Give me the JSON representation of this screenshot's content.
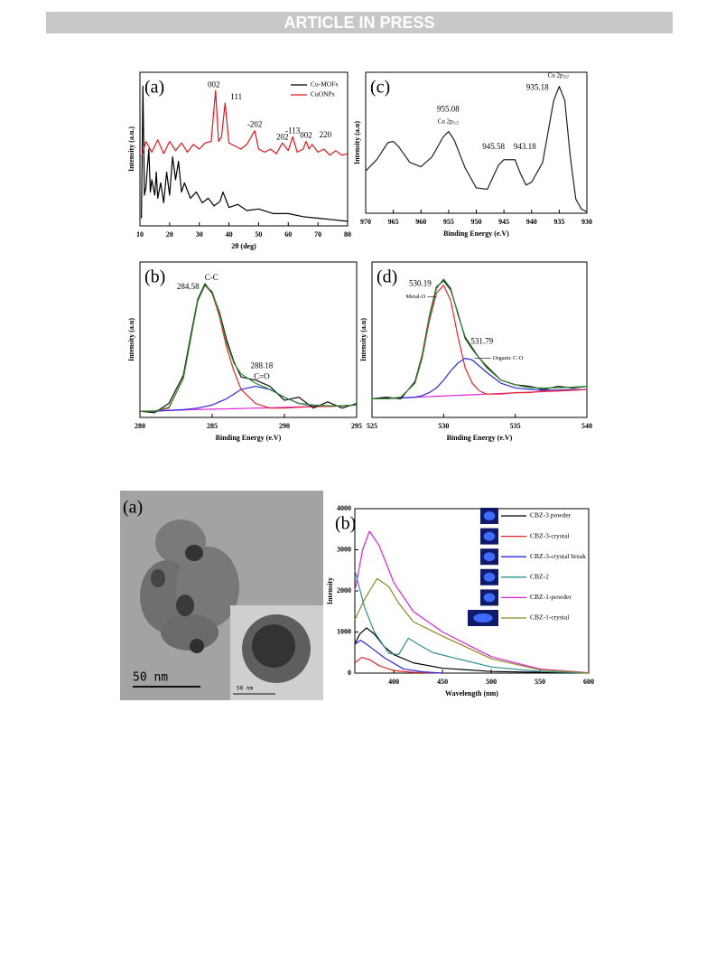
{
  "header": {
    "banner": "ARTICLE IN PRESS"
  },
  "image": {
    "panel_label": "(a)",
    "scale_bar": "50 nm",
    "inset_scale_bar": "50 nm"
  },
  "chart_data": [
    {
      "type": "line",
      "panel_label": "(a)",
      "xlabel": "2θ (deg)",
      "ylabel": "Intensity (a.u.)",
      "xlim": [
        10,
        80
      ],
      "xticks": [
        10,
        20,
        30,
        40,
        50,
        60,
        70,
        80
      ],
      "ylim": [
        0,
        100
      ],
      "legend": "upper right",
      "series": [
        {
          "name": "Cu-MOFs",
          "color": "#000000",
          "x": [
            10.5,
            11,
            11.5,
            12,
            13,
            13.5,
            14,
            15,
            15.5,
            16,
            17,
            18,
            19,
            20,
            21,
            22,
            23,
            24,
            25,
            27,
            29,
            31,
            33,
            35,
            37,
            38,
            40,
            43,
            46,
            50,
            55,
            60,
            65,
            70,
            75,
            80
          ],
          "values": [
            5,
            91,
            20,
            25,
            50,
            22,
            30,
            20,
            35,
            18,
            28,
            15,
            35,
            20,
            45,
            30,
            42,
            22,
            28,
            18,
            22,
            15,
            18,
            13,
            16,
            22,
            12,
            14,
            10,
            11,
            8,
            8,
            6,
            5,
            4,
            3
          ]
        },
        {
          "name": "CuONPs",
          "color": "#e8141c",
          "x": [
            10.5,
            12,
            14,
            16,
            18,
            20,
            22,
            24,
            26,
            28,
            30,
            32,
            34,
            35.5,
            36.5,
            37.5,
            38.7,
            40,
            42,
            44,
            46,
            48.7,
            50,
            52,
            54,
            56,
            58,
            60,
            61.5,
            63,
            65,
            66,
            67,
            68,
            70,
            72,
            74,
            76,
            78,
            80
          ],
          "values": [
            45,
            55,
            48,
            56,
            47,
            55,
            49,
            54,
            48,
            53,
            50,
            54,
            55,
            88,
            55,
            58,
            80,
            54,
            52,
            50,
            53,
            62,
            50,
            48,
            50,
            47,
            54,
            49,
            58,
            48,
            50,
            55,
            50,
            53,
            48,
            50,
            46,
            49,
            46,
            47
          ]
        }
      ],
      "annotations": [
        {
          "text": "002",
          "x": 35.5,
          "y": 88
        },
        {
          "text": "111",
          "x": 38.7,
          "y": 80
        },
        {
          "text": "-202",
          "x": 48.7,
          "y": 62
        },
        {
          "text": "202",
          "x": 58,
          "y": 54
        },
        {
          "text": "-113",
          "x": 61.5,
          "y": 58
        },
        {
          "text": "002",
          "x": 66,
          "y": 55
        },
        {
          "text": "220",
          "x": 68,
          "y": 53
        }
      ]
    },
    {
      "type": "line",
      "panel_label": "(c)",
      "xlabel": "Binding Energy (e.V)",
      "ylabel": "Intensity (a.u)",
      "xlim": [
        970,
        930
      ],
      "xticks": [
        970,
        965,
        960,
        955,
        950,
        945,
        940,
        935,
        930
      ],
      "ylim": [
        0,
        100
      ],
      "series": [
        {
          "color": "#222222",
          "x": [
            970,
            968,
            966,
            965,
            964,
            962,
            960,
            958,
            956,
            955,
            954,
            952,
            950,
            948,
            946,
            945,
            944,
            943,
            942,
            941,
            940,
            938,
            936,
            935,
            934,
            933,
            932,
            931,
            930
          ],
          "values": [
            30,
            38,
            50,
            51,
            47,
            36,
            33,
            40,
            54,
            58,
            52,
            32,
            18,
            17,
            34,
            38,
            38,
            38,
            28,
            20,
            22,
            36,
            80,
            90,
            80,
            40,
            10,
            3,
            1
          ]
        }
      ],
      "annotations": [
        {
          "text": "955.08",
          "x": 955.08,
          "y": 58
        },
        {
          "text": "Cu 2p",
          "sub": "1/2",
          "x": 955.08,
          "y": 58
        },
        {
          "text": "945.58",
          "x": 945.58,
          "y": 38
        },
        {
          "text": "943.18",
          "x": 943.18,
          "y": 38
        },
        {
          "text": "935.18",
          "x": 935.18,
          "y": 90
        },
        {
          "text": "Cu 2p",
          "sub": "3/2",
          "x": 935.18,
          "y": 90
        }
      ]
    },
    {
      "type": "line",
      "panel_label": "(b)",
      "xlabel": "Binding Energy (e.V)",
      "ylabel": "Intensity (a.u)",
      "xlim": [
        280,
        295
      ],
      "xticks": [
        280,
        285,
        290,
        295
      ],
      "ylim": [
        0,
        100
      ],
      "x": [
        280,
        281,
        282,
        283,
        283.5,
        284,
        284.5,
        285,
        285.5,
        286,
        286.5,
        287,
        288,
        289,
        290,
        291,
        292,
        293,
        294,
        295
      ],
      "series": [
        {
          "color": "#e020e0",
          "values": [
            4,
            4.2,
            4.5,
            4.8,
            5,
            5.1,
            5.2,
            5.3,
            5.4,
            5.5,
            5.6,
            5.7,
            6,
            6.2,
            6.5,
            6.8,
            7,
            7.3,
            7.6,
            8
          ]
        },
        {
          "color": "#2a2ae0",
          "values": [
            4,
            4,
            4.5,
            5,
            5.5,
            6,
            7,
            8,
            10,
            12,
            15,
            18,
            20,
            18,
            13,
            9,
            7.5,
            7,
            7.5,
            8
          ]
        },
        {
          "color": "#e8262a",
          "values": [
            4,
            4,
            6,
            25,
            50,
            75,
            85,
            80,
            65,
            45,
            30,
            18,
            9,
            6,
            6,
            6.5,
            7,
            7,
            7.5,
            8
          ]
        },
        {
          "color": "#111111",
          "values": [
            4,
            3,
            9,
            27,
            52,
            76,
            86,
            80,
            68,
            50,
            36,
            26,
            24,
            20,
            11,
            13,
            6,
            10,
            6,
            9
          ]
        },
        {
          "color": "#2e8b2e",
          "values": [
            4,
            4,
            6.5,
            25,
            50,
            75,
            85,
            81,
            67,
            48,
            35,
            28,
            22,
            18,
            13,
            9,
            8,
            7.5,
            7.5,
            8
          ]
        }
      ],
      "annotations": [
        {
          "text": "284.58",
          "x": 284.58,
          "y": 85
        },
        {
          "text": "C-C",
          "x": 284.58,
          "y": 85
        },
        {
          "text": "288.18",
          "x": 288.18,
          "y": 20
        },
        {
          "text": "C=O",
          "x": 288.18,
          "y": 20
        }
      ]
    },
    {
      "type": "line",
      "panel_label": "(d)",
      "xlabel": "Binding Energy (e.V)",
      "ylabel": "Intensity (a.u)",
      "xlim": [
        525,
        540
      ],
      "xticks": [
        525,
        530,
        535,
        540
      ],
      "ylim": [
        0,
        100
      ],
      "x": [
        525,
        526,
        527,
        528,
        528.5,
        529,
        529.5,
        530,
        530.5,
        531,
        531.5,
        532,
        532.5,
        533,
        534,
        535,
        536,
        537,
        538,
        539,
        540
      ],
      "series": [
        {
          "color": "#e020e0",
          "values": [
            12,
            12.3,
            12.6,
            13,
            13.2,
            13.4,
            13.6,
            13.8,
            14,
            14.2,
            14.4,
            14.6,
            14.8,
            15,
            15.4,
            15.8,
            16.2,
            16.6,
            17,
            17.5,
            18
          ]
        },
        {
          "color": "#2a2ae0",
          "values": [
            12,
            12,
            12.5,
            13,
            14,
            16,
            19,
            24,
            30,
            35,
            38,
            37,
            33,
            29,
            22,
            19,
            18,
            17.5,
            17.5,
            18,
            18
          ]
        },
        {
          "color": "#e8262a",
          "values": [
            12,
            12,
            13,
            22,
            38,
            62,
            80,
            85,
            75,
            52,
            32,
            22,
            17,
            15,
            15,
            16,
            16,
            17,
            17,
            17.5,
            18
          ]
        },
        {
          "color": "#111111",
          "values": [
            12,
            13,
            12,
            23,
            40,
            65,
            84,
            88,
            82,
            67,
            51,
            44,
            38,
            33,
            24,
            21,
            20,
            18,
            20,
            19,
            20
          ]
        },
        {
          "color": "#2e8b2e",
          "values": [
            12,
            12,
            13,
            22,
            39,
            64,
            83,
            89,
            83,
            66,
            52,
            45,
            38,
            32,
            24,
            21,
            19,
            19,
            19,
            19.5,
            20
          ]
        }
      ],
      "annotations": [
        {
          "text": "530.19",
          "x": 530.19,
          "y": 87
        },
        {
          "text": "Metal-O",
          "x": 529.5,
          "y": 80
        },
        {
          "text": "531.79",
          "x": 531.79,
          "y": 38
        },
        {
          "text": "Organic C-O",
          "x": 531.79,
          "y": 38
        }
      ]
    },
    {
      "type": "line",
      "panel_label": "(b)",
      "xlabel": "Wavelength (nm)",
      "ylabel": "Intensity",
      "xlim": [
        360,
        600
      ],
      "xticks": [
        400,
        450,
        500,
        550,
        600
      ],
      "ylim": [
        0,
        4000
      ],
      "yticks": [
        0,
        1000,
        2000,
        3000,
        4000
      ],
      "legend": "upper right",
      "series": [
        {
          "name": "CBZ-3 powder",
          "color": "#000000",
          "x": [
            360,
            365,
            372,
            380,
            390,
            400,
            420,
            450,
            500,
            600
          ],
          "values": [
            700,
            950,
            1100,
            950,
            650,
            450,
            250,
            120,
            40,
            0
          ]
        },
        {
          "name": "CBZ-3-crystal",
          "color": "#e8262a",
          "x": [
            360,
            367,
            375,
            385,
            400,
            420,
            450
          ],
          "values": [
            250,
            380,
            330,
            180,
            60,
            20,
            0
          ]
        },
        {
          "name": "CBZ-3-crystal break",
          "color": "#2a2ae0",
          "x": [
            360,
            366,
            375,
            390,
            410,
            430,
            450
          ],
          "values": [
            700,
            800,
            650,
            380,
            100,
            30,
            0
          ]
        },
        {
          "name": "CBZ-2",
          "color": "#2a9090",
          "x": [
            360,
            370,
            380,
            395,
            405,
            415,
            425,
            440,
            460,
            500,
            550,
            600
          ],
          "values": [
            2500,
            1600,
            1000,
            480,
            450,
            850,
            700,
            500,
            380,
            150,
            40,
            0
          ]
        },
        {
          "name": "CBZ-1-powder",
          "color": "#e020e0",
          "x": [
            360,
            368,
            375,
            385,
            400,
            420,
            450,
            500,
            550,
            600
          ],
          "values": [
            2000,
            3000,
            3450,
            3100,
            2200,
            1500,
            1000,
            400,
            100,
            10
          ]
        },
        {
          "name": "CBZ-1-crystal",
          "color": "#8a8a20",
          "x": [
            360,
            370,
            383,
            395,
            405,
            420,
            450,
            500,
            550,
            600
          ],
          "values": [
            1300,
            1800,
            2300,
            2100,
            1700,
            1250,
            900,
            350,
            80,
            5
          ]
        }
      ]
    }
  ]
}
